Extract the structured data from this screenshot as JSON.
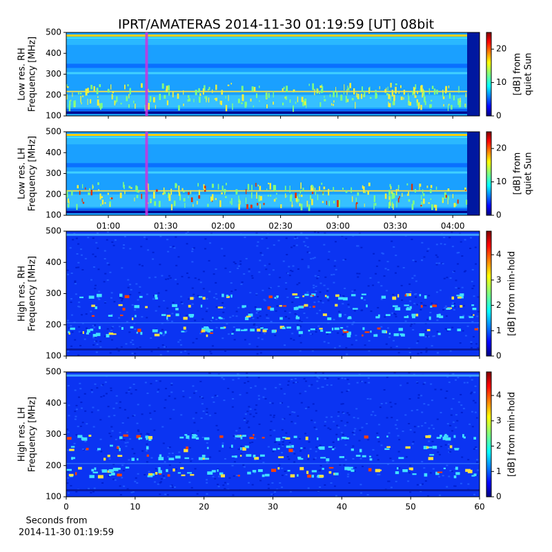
{
  "chart_data": [
    {
      "type": "spectrogram",
      "title": "IPRT/AMATERAS 2014-11-30 01:19:59 [UT]   08bit",
      "ylabel": [
        "Low res. RH",
        "Frequency [MHz]"
      ],
      "ylim": [
        100,
        500
      ],
      "yticks": [
        100,
        200,
        300,
        400,
        500
      ],
      "colorbar_label": [
        "[dB] from",
        "quiet Sun"
      ],
      "clim": [
        0,
        25
      ],
      "cticks": [
        0,
        10,
        20
      ],
      "marker": {
        "x": 80,
        "color": "#cc33dd"
      }
    },
    {
      "type": "spectrogram",
      "ylabel": [
        "Low res. LH",
        "Frequency [MHz]"
      ],
      "ylim": [
        100,
        500
      ],
      "yticks": [
        100,
        200,
        300,
        400,
        500
      ],
      "colorbar_label": [
        "[dB] from",
        "quiet Sun"
      ],
      "clim": [
        0,
        25
      ],
      "cticks": [
        0,
        10,
        20
      ],
      "xlim": [
        38,
        254
      ],
      "xticks": [
        {
          "value": 60,
          "label": "01:00"
        },
        {
          "value": 90,
          "label": "01:30"
        },
        {
          "value": 120,
          "label": "02:00"
        },
        {
          "value": 150,
          "label": "02:30"
        },
        {
          "value": 180,
          "label": "03:00"
        },
        {
          "value": 210,
          "label": "03:30"
        },
        {
          "value": 240,
          "label": "04:00"
        }
      ]
    },
    {
      "type": "spectrogram",
      "ylabel": [
        "High res. RH",
        "Frequency [MHz]"
      ],
      "ylim": [
        100,
        500
      ],
      "yticks": [
        100,
        200,
        300,
        400,
        500
      ],
      "colorbar_label": [
        "[dB] from min-hold"
      ],
      "clim": [
        0,
        4.93
      ],
      "cticks": [
        0,
        1,
        2,
        3,
        4
      ]
    },
    {
      "type": "spectrogram",
      "ylabel": [
        "High res. LH",
        "Frequency [MHz]"
      ],
      "ylim": [
        100,
        500
      ],
      "yticks": [
        100,
        200,
        300,
        400,
        500
      ],
      "colorbar_label": [
        "[dB] from min-hold"
      ],
      "clim": [
        0,
        4.93
      ],
      "cticks": [
        0,
        1,
        2,
        3,
        4
      ],
      "xlabel": [
        "Seconds from",
        "2014-11-30 01:19:59"
      ],
      "xlim": [
        0,
        60
      ],
      "xticks": [
        0,
        10,
        20,
        30,
        40,
        50,
        60
      ]
    }
  ]
}
